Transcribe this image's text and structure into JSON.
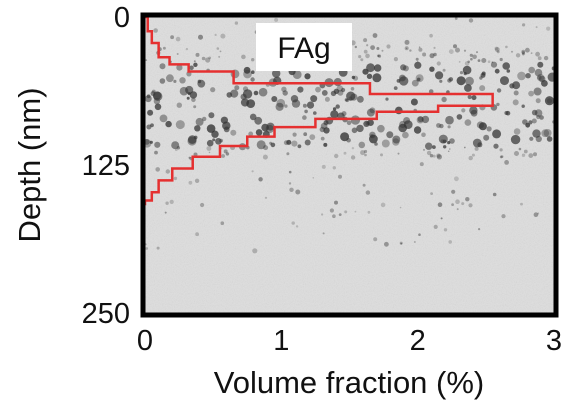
{
  "chart_data": {
    "type": "line",
    "title": "",
    "annotation": "FAg",
    "xlabel": "Volume fraction (%)",
    "ylabel": "Depth (nm)",
    "xlim": [
      0,
      3
    ],
    "ylim": [
      0,
      250
    ],
    "y_inverted": true,
    "x_ticks": [
      "0",
      "1",
      "2",
      "3"
    ],
    "y_ticks": [
      "0",
      "125",
      "250"
    ],
    "grid": false,
    "legend": "none",
    "background": "TEM micrograph with dark nanoparticles concentrated near 40-110 nm depth",
    "line_color": "#e53030",
    "step": true,
    "series": [
      {
        "x": [
          0.02,
          0.05,
          0.1,
          0.18,
          0.32,
          0.65,
          1.65,
          2.55,
          2.55,
          2.15,
          1.7,
          1.25,
          0.95,
          0.75,
          0.55,
          0.35,
          0.2,
          0.1,
          0.05,
          0.01
        ],
        "y": [
          6,
          12,
          22,
          34,
          40,
          46,
          56,
          65,
          70,
          75,
          80,
          86,
          93,
          101,
          109,
          118,
          128,
          138,
          148,
          155
        ]
      }
    ]
  }
}
